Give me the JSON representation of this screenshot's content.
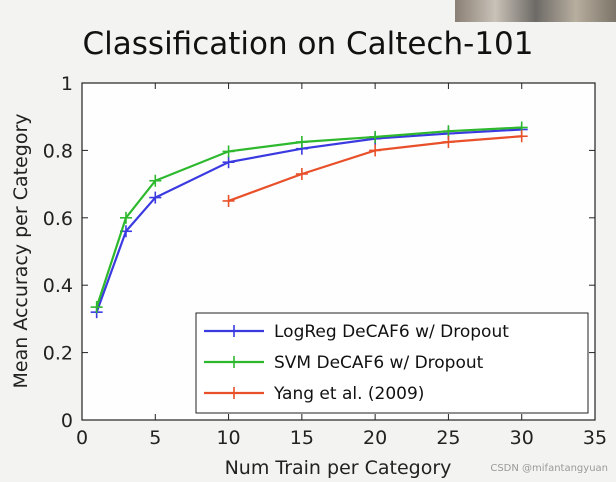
{
  "chart_data": {
    "type": "line",
    "title": "Classification on Caltech-101",
    "xlabel": "Num Train per Category",
    "ylabel": "Mean Accuracy per Category",
    "xlim": [
      0,
      35
    ],
    "ylim": [
      0,
      1
    ],
    "xticks": [
      "0",
      "5",
      "10",
      "15",
      "20",
      "25",
      "30",
      "35"
    ],
    "yticks": [
      "0",
      "0.2",
      "0.4",
      "0.6",
      "0.8",
      "1"
    ],
    "grid": false,
    "legend_position": "bottom-right",
    "series": [
      {
        "name": "LogReg DeCAF6 w/ Dropout",
        "color": "#3a3ae0",
        "x": [
          1,
          3,
          5,
          10,
          15,
          20,
          25,
          30
        ],
        "y": [
          0.32,
          0.56,
          0.66,
          0.765,
          0.805,
          0.835,
          0.85,
          0.862
        ]
      },
      {
        "name": "SVM DeCAF6 w/ Dropout",
        "color": "#2db82d",
        "x": [
          1,
          3,
          5,
          10,
          15,
          20,
          25,
          30
        ],
        "y": [
          0.335,
          0.6,
          0.71,
          0.797,
          0.825,
          0.84,
          0.857,
          0.868
        ]
      },
      {
        "name": "Yang et al. (2009)",
        "color": "#e8502a",
        "x": [
          10,
          15,
          20,
          25,
          30
        ],
        "y": [
          0.65,
          0.73,
          0.8,
          0.825,
          0.842
        ]
      }
    ]
  },
  "watermark": "CSDN @mifantangyuan"
}
